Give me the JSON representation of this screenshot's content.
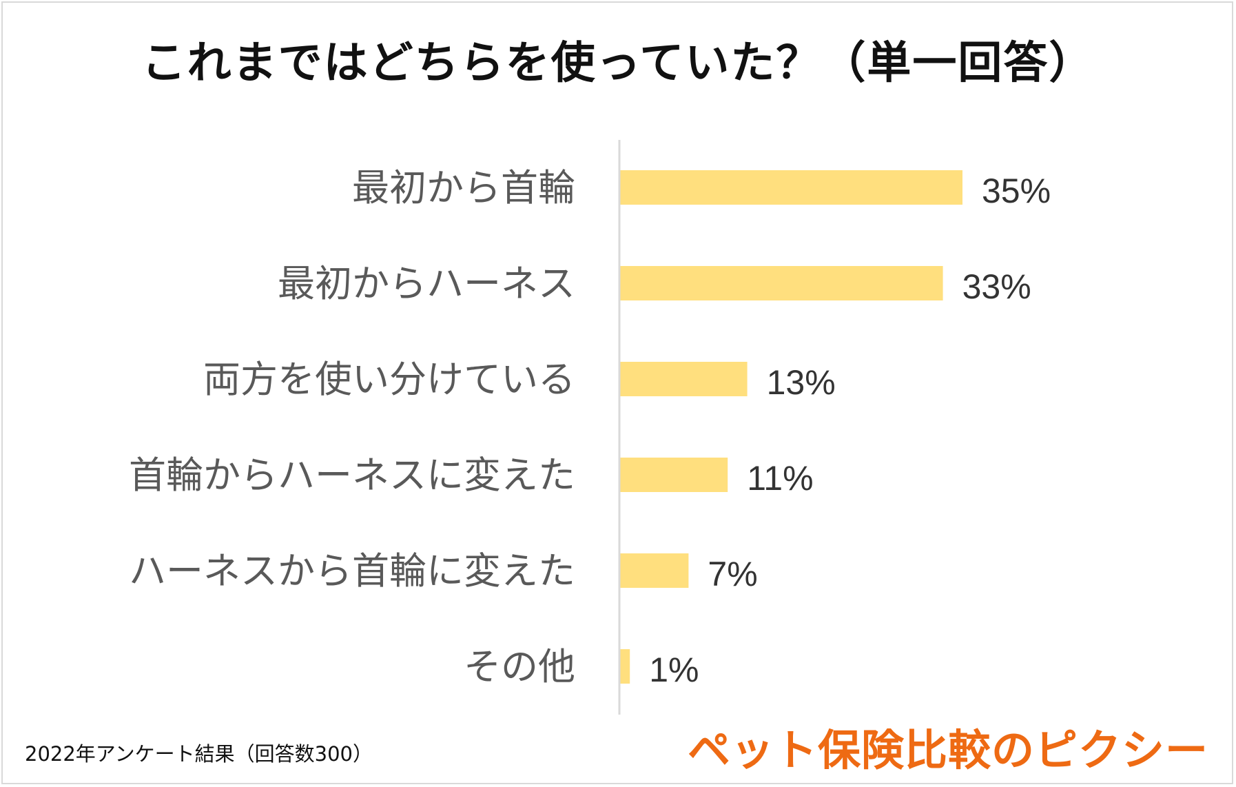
{
  "chart_data": {
    "type": "bar",
    "orientation": "horizontal",
    "title": "これまではどちらを使っていた？（単一回答）",
    "categories": [
      "最初から首輪",
      "最初からハーネス",
      "両方を使い分けている",
      "首輪からハーネスに変えた",
      "ハーネスから首輪に変えた",
      "その他"
    ],
    "values": [
      35,
      33,
      13,
      11,
      7,
      1
    ],
    "value_labels": [
      "35%",
      "33%",
      "13%",
      "11%",
      "7%",
      "1%"
    ],
    "unit": "%",
    "xlim": [
      0,
      50
    ],
    "grid": false,
    "legend": "none",
    "bar_color": "#ffdf7e"
  },
  "footnote": "2022年アンケート結果（回答数300）",
  "brand": "ペット保険比較のピクシー",
  "colors": {
    "axis": "#d9d9d9",
    "brand": "#ee6a13"
  }
}
